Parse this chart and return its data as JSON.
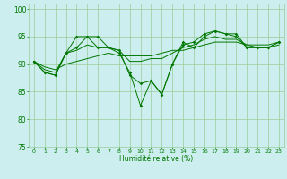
{
  "x": [
    0,
    1,
    2,
    3,
    4,
    5,
    6,
    7,
    8,
    9,
    10,
    11,
    12,
    13,
    14,
    15,
    16,
    17,
    18,
    19,
    20,
    21,
    22,
    23
  ],
  "line1": [
    90.5,
    88.5,
    88.0,
    92.0,
    95.0,
    95.0,
    95.0,
    93.0,
    92.0,
    88.5,
    82.5,
    87.0,
    84.5,
    90.0,
    94.0,
    93.0,
    95.0,
    96.0,
    95.5,
    95.5,
    93.0,
    93.0,
    93.0,
    94.0
  ],
  "line2": [
    90.5,
    88.5,
    88.0,
    92.0,
    93.0,
    95.0,
    93.0,
    93.0,
    92.5,
    88.0,
    86.5,
    87.0,
    84.5,
    90.0,
    93.5,
    94.0,
    95.5,
    96.0,
    95.5,
    95.0,
    93.0,
    93.0,
    93.0,
    94.0
  ],
  "line3": [
    90.5,
    89.0,
    88.5,
    92.0,
    92.5,
    93.5,
    93.0,
    93.0,
    92.5,
    90.5,
    90.5,
    91.0,
    91.0,
    92.0,
    93.0,
    93.5,
    94.5,
    95.0,
    94.5,
    94.5,
    93.5,
    93.0,
    93.0,
    93.5
  ],
  "line4": [
    90.5,
    89.5,
    89.0,
    90.0,
    90.5,
    91.0,
    91.5,
    92.0,
    91.5,
    91.5,
    91.5,
    91.5,
    92.0,
    92.5,
    92.5,
    93.0,
    93.5,
    94.0,
    94.0,
    94.0,
    93.5,
    93.5,
    93.5,
    94.0
  ],
  "line_color": "#007700",
  "bg_color": "#cceeee",
  "grid_color": "#99cc99",
  "xlabel": "Humidité relative (%)",
  "ylim": [
    75,
    101
  ],
  "yticks": [
    75,
    80,
    85,
    90,
    95,
    100
  ],
  "xticks": [
    0,
    1,
    2,
    3,
    4,
    5,
    6,
    7,
    8,
    9,
    10,
    11,
    12,
    13,
    14,
    15,
    16,
    17,
    18,
    19,
    20,
    21,
    22,
    23
  ]
}
